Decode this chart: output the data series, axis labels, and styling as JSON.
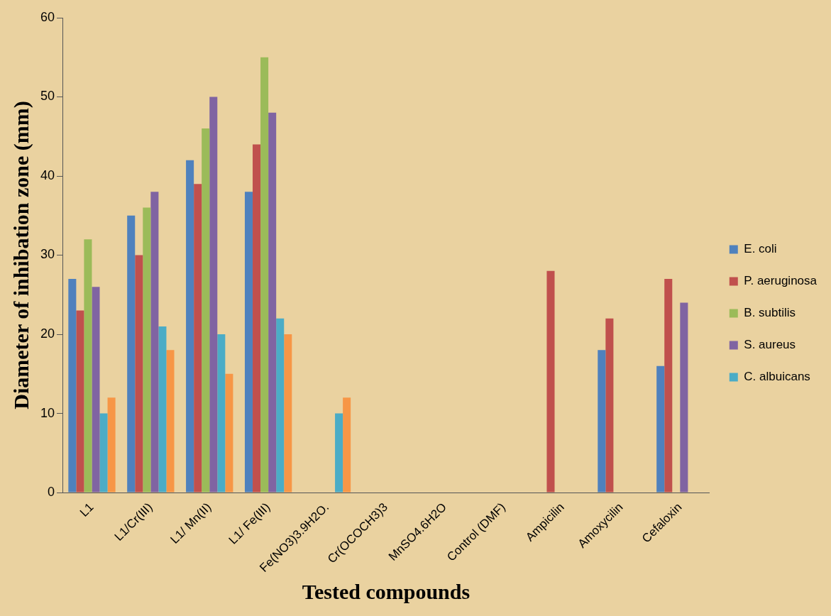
{
  "chart_data": {
    "type": "bar",
    "xlabel": "Tested compounds",
    "ylabel": "Diameter of inhibation zone (mm)",
    "categories": [
      "L1",
      "L1/Cr(III)",
      "L1/ Mn(II)",
      "L1/ Fe(III)",
      "Fe(NO3)3.9H2O.",
      "Cr(OCOCH3)3",
      "MnSO4.6H2O",
      "Control (DMF)",
      "Ampicilin",
      "Amoxycilin",
      "Cefaloxin"
    ],
    "series": [
      {
        "name": "E. coli",
        "color": "#4f81bd",
        "values": [
          27,
          35,
          42,
          38,
          null,
          null,
          null,
          null,
          null,
          18,
          16
        ]
      },
      {
        "name": "P. aeruginosa",
        "color": "#c0504d",
        "values": [
          23,
          30,
          39,
          44,
          null,
          null,
          null,
          null,
          28,
          22,
          27
        ]
      },
      {
        "name": "B. subtilis",
        "color": "#9bbb59",
        "values": [
          32,
          36,
          46,
          55,
          null,
          null,
          null,
          null,
          null,
          null,
          null
        ]
      },
      {
        "name": "S. aureus",
        "color": "#8064a2",
        "values": [
          26,
          38,
          50,
          48,
          null,
          null,
          null,
          null,
          null,
          null,
          24
        ]
      },
      {
        "name": "C. albuicans",
        "color": "#4bacc6",
        "values": [
          10,
          21,
          20,
          22,
          10,
          null,
          null,
          null,
          null,
          null,
          null
        ]
      },
      {
        "color": "#f79646",
        "values": [
          12,
          18,
          15,
          20,
          12,
          null,
          null,
          null,
          null,
          null,
          null
        ]
      }
    ],
    "ylim": [
      0,
      60
    ],
    "yticks": [
      0,
      10,
      20,
      30,
      40,
      50,
      60
    ],
    "grid": false,
    "legend": "right"
  }
}
